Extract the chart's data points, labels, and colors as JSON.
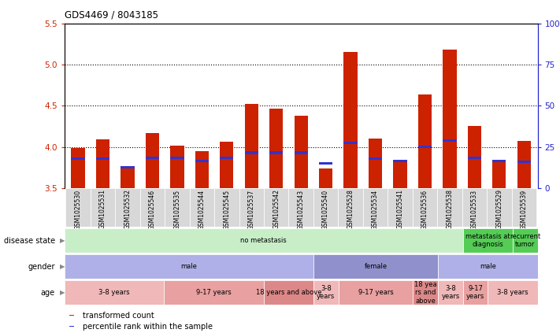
{
  "title": "GDS4469 / 8043185",
  "samples": [
    "GSM1025530",
    "GSM1025531",
    "GSM1025532",
    "GSM1025546",
    "GSM1025535",
    "GSM1025544",
    "GSM1025545",
    "GSM1025537",
    "GSM1025542",
    "GSM1025543",
    "GSM1025540",
    "GSM1025528",
    "GSM1025534",
    "GSM1025541",
    "GSM1025536",
    "GSM1025538",
    "GSM1025533",
    "GSM1025529",
    "GSM1025539"
  ],
  "red_values": [
    3.99,
    4.09,
    3.75,
    4.17,
    4.02,
    3.95,
    4.06,
    4.52,
    4.46,
    4.38,
    3.74,
    5.15,
    4.1,
    3.83,
    4.64,
    5.18,
    4.25,
    3.82,
    4.07
  ],
  "blue_values": [
    3.86,
    3.86,
    3.75,
    3.87,
    3.87,
    3.83,
    3.87,
    3.93,
    3.93,
    3.93,
    3.8,
    4.05,
    3.86,
    3.83,
    4.0,
    4.08,
    3.87,
    3.83,
    3.82
  ],
  "ylim_left": [
    3.5,
    5.5
  ],
  "yticks_left": [
    3.5,
    4.0,
    4.5,
    5.0,
    5.5
  ],
  "ylim_right": [
    0,
    100
  ],
  "yticks_right": [
    0,
    25,
    50,
    75,
    100
  ],
  "ytick_labels_right": [
    "0",
    "25",
    "50",
    "75",
    "100%"
  ],
  "bar_color": "#cc2200",
  "blue_color": "#3333cc",
  "disease_state_groups": [
    {
      "label": "no metastasis",
      "start": 0,
      "end": 16,
      "color": "#c8eec8"
    },
    {
      "label": "metastasis at\ndiagnosis",
      "start": 16,
      "end": 18,
      "color": "#55cc55"
    },
    {
      "label": "recurrent\ntumor",
      "start": 18,
      "end": 19,
      "color": "#55cc55"
    }
  ],
  "gender_groups": [
    {
      "label": "male",
      "start": 0,
      "end": 10,
      "color": "#b0b0e8"
    },
    {
      "label": "female",
      "start": 10,
      "end": 15,
      "color": "#9090cc"
    },
    {
      "label": "male",
      "start": 15,
      "end": 19,
      "color": "#b0b0e8"
    }
  ],
  "age_groups": [
    {
      "label": "3-8 years",
      "start": 0,
      "end": 4,
      "color": "#f0b8b8"
    },
    {
      "label": "9-17 years",
      "start": 4,
      "end": 8,
      "color": "#e8a0a0"
    },
    {
      "label": "18 years and above",
      "start": 8,
      "end": 10,
      "color": "#dd8888"
    },
    {
      "label": "3-8\nyears",
      "start": 10,
      "end": 11,
      "color": "#f0b8b8"
    },
    {
      "label": "9-17 years",
      "start": 11,
      "end": 14,
      "color": "#e8a0a0"
    },
    {
      "label": "18 yea\nrs and\nabove",
      "start": 14,
      "end": 15,
      "color": "#dd8888"
    },
    {
      "label": "3-8\nyears",
      "start": 15,
      "end": 16,
      "color": "#f0b8b8"
    },
    {
      "label": "9-17\nyears",
      "start": 16,
      "end": 17,
      "color": "#e8a0a0"
    },
    {
      "label": "3-8 years",
      "start": 17,
      "end": 19,
      "color": "#f0b8b8"
    }
  ],
  "left_axis_color": "#cc2200",
  "right_axis_color": "#2222cc",
  "legend_items": [
    {
      "label": "transformed count",
      "color": "#cc2200"
    },
    {
      "label": "percentile rank within the sample",
      "color": "#3333cc"
    }
  ]
}
